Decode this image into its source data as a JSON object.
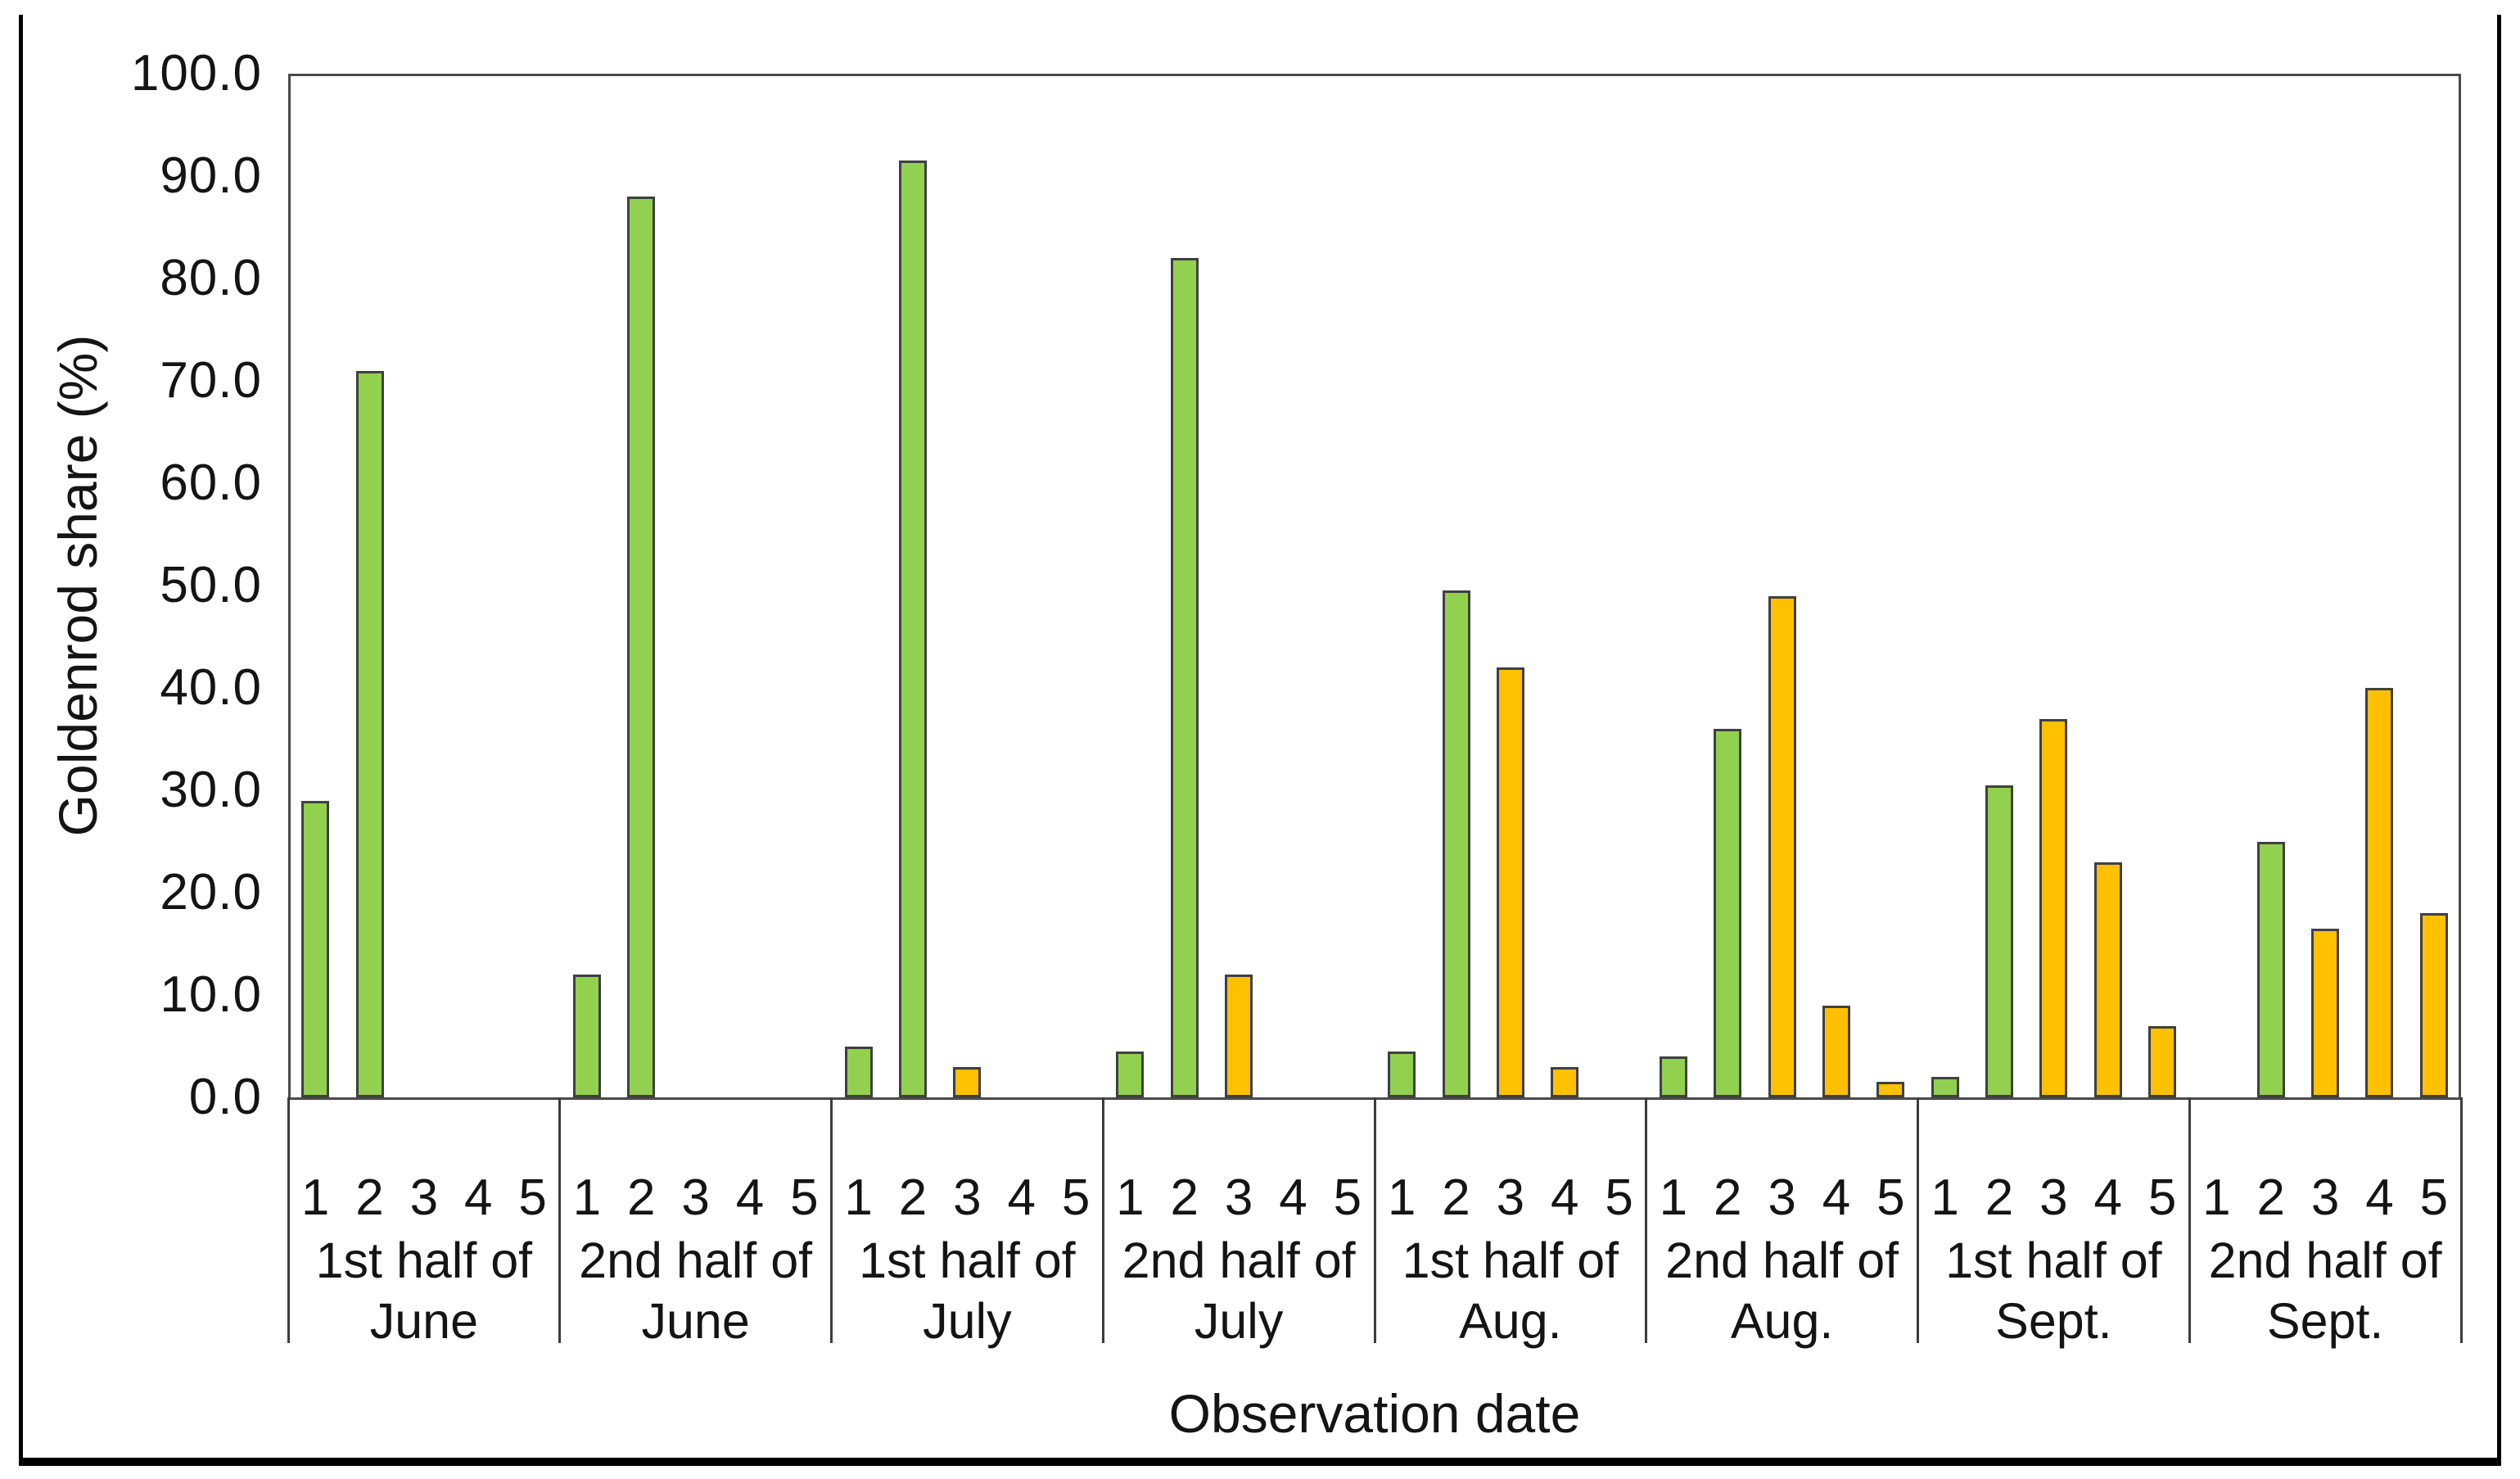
{
  "figure": {
    "ylabel": "Goldenrod share (%)",
    "xlabel": "Observation date"
  },
  "chart_data": {
    "type": "bar",
    "title": "",
    "ylabel": "Goldenrod share (%)",
    "xlabel": "Observation date",
    "ylim": [
      0,
      100
    ],
    "ytick_step": 10,
    "ytick_labels": [
      "100.0",
      "90.0",
      "80.0",
      "70.0",
      "60.0",
      "50.0",
      "40.0",
      "30.0",
      "20.0",
      "10.0",
      "0.0"
    ],
    "grid": false,
    "legend": null,
    "position_labels": [
      "1",
      "2",
      "3",
      "4",
      "5"
    ],
    "position_colors": [
      "green",
      "green",
      "yellow",
      "yellow",
      "yellow"
    ],
    "colors": {
      "green": "#92D050",
      "yellow": "#FFC000",
      "bar_border": "#404040",
      "axis": "#4a4a4a"
    },
    "groups": [
      {
        "label": [
          "1st half of",
          "June"
        ],
        "values": [
          29,
          71,
          0,
          0,
          0
        ]
      },
      {
        "label": [
          "2nd half of",
          "June"
        ],
        "values": [
          12,
          88,
          0,
          0,
          0
        ]
      },
      {
        "label": [
          "1st half of",
          "July"
        ],
        "values": [
          5,
          91.5,
          3,
          0,
          0
        ]
      },
      {
        "label": [
          "2nd half of",
          "July"
        ],
        "values": [
          4.5,
          82,
          12,
          0,
          0
        ]
      },
      {
        "label": [
          "1st half of",
          "Aug."
        ],
        "values": [
          4.5,
          49.5,
          42,
          3,
          0
        ]
      },
      {
        "label": [
          "2nd half of",
          "Aug."
        ],
        "values": [
          4,
          36,
          49,
          9,
          1.5
        ]
      },
      {
        "label": [
          "1st half of",
          "Sept."
        ],
        "values": [
          2,
          30.5,
          37,
          23,
          7
        ]
      },
      {
        "label": [
          "2nd half of",
          "Sept."
        ],
        "values": [
          0,
          25,
          16.5,
          40,
          18
        ]
      }
    ]
  }
}
